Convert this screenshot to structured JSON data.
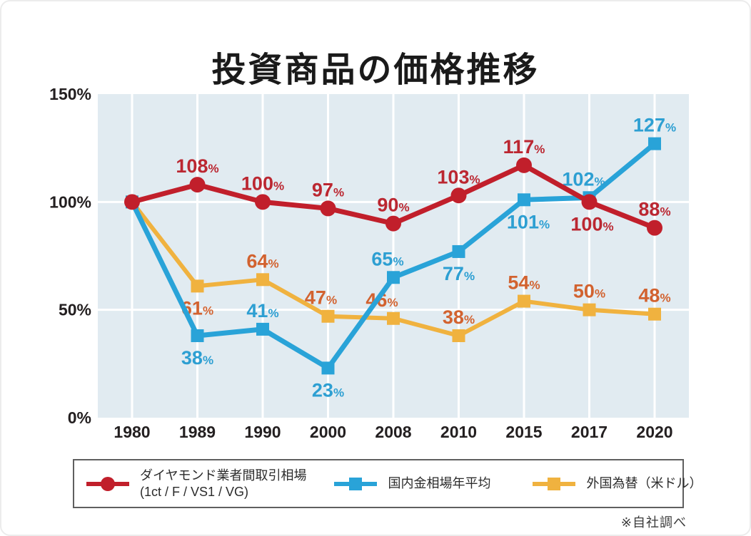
{
  "title": "投資商品の価格推移",
  "note": "※自社調べ",
  "colors": {
    "red": "#c11f2b",
    "blue": "#29a3d8",
    "yellow": "#f0b23f",
    "orange_label": "#d2622f",
    "plot_bg": "#e1ebf1",
    "grid": "#ffffff",
    "axis_text": "#231f20",
    "legend_border": "#5f5f5f"
  },
  "legend": {
    "items": [
      {
        "line1": "ダイヤモンド業者間取引相場",
        "line2": "(1ct / F / VS1 / VG)"
      },
      {
        "label": "国内金相場年平均"
      },
      {
        "label": "外国為替（米ドル）"
      }
    ]
  },
  "chart_data": {
    "type": "line",
    "title": "投資商品の価格推移",
    "categories": [
      "1980",
      "1989",
      "1990",
      "2000",
      "2008",
      "2010",
      "2015",
      "2017",
      "2020"
    ],
    "ylim": [
      0,
      150
    ],
    "yticks": [
      {
        "value": 150,
        "label": "150%"
      },
      {
        "value": 100,
        "label": "100%"
      },
      {
        "value": 50,
        "label": "50%"
      },
      {
        "value": 0,
        "label": "0%"
      }
    ],
    "ygrid": [
      100,
      50
    ],
    "grid": true,
    "legend_position": "bottom",
    "unit": "%",
    "series": [
      {
        "name": "ダイヤモンド業者間取引相場 (1ct / F / VS1 / VG)",
        "color": "#c11f2b",
        "label_color": "#bb2731",
        "marker": "circle",
        "line_width": 7,
        "values": [
          100,
          108,
          100,
          97,
          90,
          103,
          117,
          100,
          88
        ],
        "labels": [
          null,
          "above",
          "above",
          "above",
          "above",
          "above",
          "above",
          "below",
          "above"
        ],
        "label_dx": {
          "7": 4
        }
      },
      {
        "name": "国内金相場年平均",
        "color": "#29a3d8",
        "label_color": "#2d9fd2",
        "marker": "square",
        "line_width": 7,
        "values": [
          100,
          38,
          41,
          23,
          65,
          77,
          101,
          102,
          127
        ],
        "labels": [
          null,
          "below",
          "above",
          "below",
          "above",
          "below",
          "below",
          "above",
          "above"
        ],
        "label_dx": {
          "4": -8,
          "6": 6,
          "7": -8
        }
      },
      {
        "name": "外国為替（米ドル）",
        "color": "#f0b23f",
        "label_color": "#d2622f",
        "marker": "square",
        "line_width": 6,
        "values": [
          100,
          61,
          64,
          47,
          46,
          38,
          54,
          50,
          48
        ],
        "labels": [
          null,
          "below",
          "above",
          "above",
          "above",
          "above",
          "above",
          "above",
          "above"
        ],
        "label_dx": {
          "3": -10,
          "4": -16
        }
      }
    ]
  }
}
